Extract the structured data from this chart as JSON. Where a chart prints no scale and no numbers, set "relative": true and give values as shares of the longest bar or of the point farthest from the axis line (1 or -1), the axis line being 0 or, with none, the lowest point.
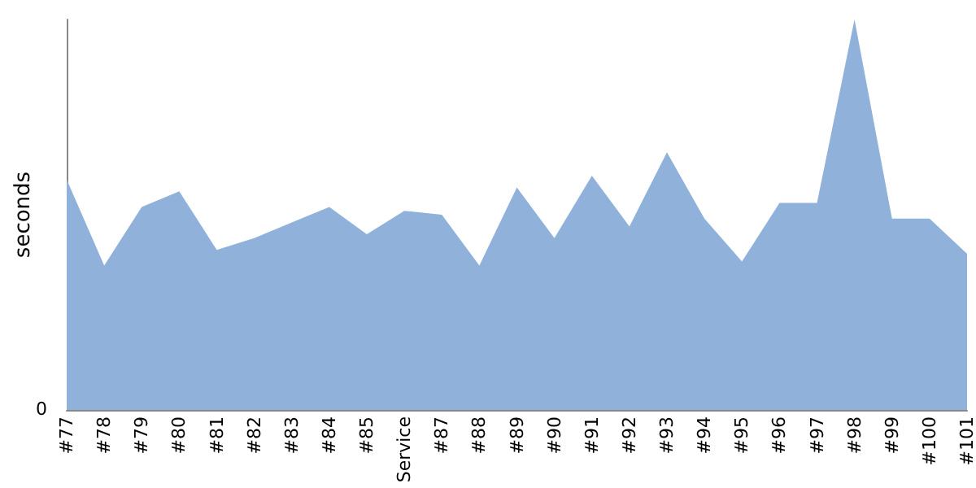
{
  "chart_data": {
    "type": "area",
    "relative": true,
    "ylabel": "seconds",
    "annotations": [
      "0"
    ],
    "categories": [
      "#77",
      "#78",
      "#79",
      "#80",
      "#81",
      "#82",
      "#83",
      "#84",
      "#85",
      "Service",
      "#87",
      "#88",
      "#89",
      "#90",
      "#91",
      "#92",
      "#93",
      "#94",
      "#95",
      "#96",
      "#97",
      "#98",
      "#99",
      "#100",
      "#101"
    ],
    "series": [
      {
        "color": "#8fb1da",
        "values": [
          0.59,
          0.37,
          0.52,
          0.56,
          0.41,
          0.44,
          0.48,
          0.52,
          0.45,
          0.51,
          0.5,
          0.37,
          0.57,
          0.44,
          0.6,
          0.47,
          0.66,
          0.49,
          0.38,
          0.53,
          0.53,
          1,
          0.49,
          0.49,
          0.4
        ]
      }
    ],
    "grid": false
  }
}
